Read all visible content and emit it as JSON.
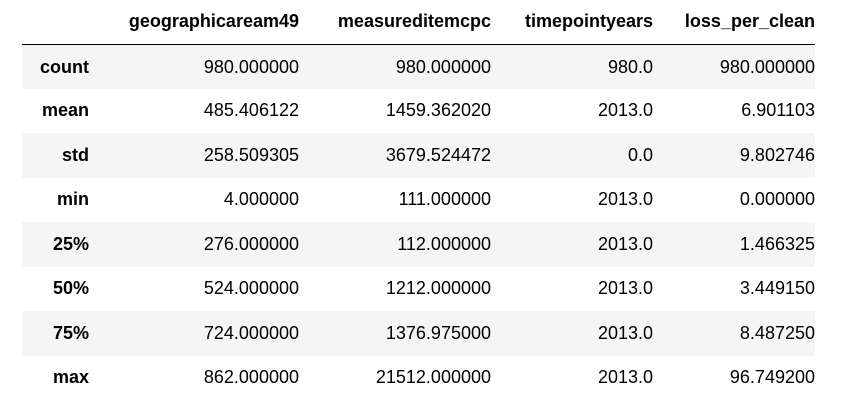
{
  "table": {
    "index_header": "",
    "columns": [
      "geographicaream49",
      "measureditemcpc",
      "timepointyears",
      "loss_per_clean"
    ],
    "rows": [
      {
        "label": "count",
        "cells": [
          "980.000000",
          "980.000000",
          "980.0",
          "980.000000"
        ]
      },
      {
        "label": "mean",
        "cells": [
          "485.406122",
          "1459.362020",
          "2013.0",
          "6.901103"
        ]
      },
      {
        "label": "std",
        "cells": [
          "258.509305",
          "3679.524472",
          "0.0",
          "9.802746"
        ]
      },
      {
        "label": "min",
        "cells": [
          "4.000000",
          "111.000000",
          "2013.0",
          "0.000000"
        ]
      },
      {
        "label": "25%",
        "cells": [
          "276.000000",
          "112.000000",
          "2013.0",
          "1.466325"
        ]
      },
      {
        "label": "50%",
        "cells": [
          "524.000000",
          "1212.000000",
          "2013.0",
          "3.449150"
        ]
      },
      {
        "label": "75%",
        "cells": [
          "724.000000",
          "1376.975000",
          "2013.0",
          "8.487250"
        ]
      },
      {
        "label": "max",
        "cells": [
          "862.000000",
          "21512.000000",
          "2013.0",
          "96.749200"
        ]
      }
    ],
    "stripe_color": "#f5f5f5",
    "border_color": "#000000"
  }
}
